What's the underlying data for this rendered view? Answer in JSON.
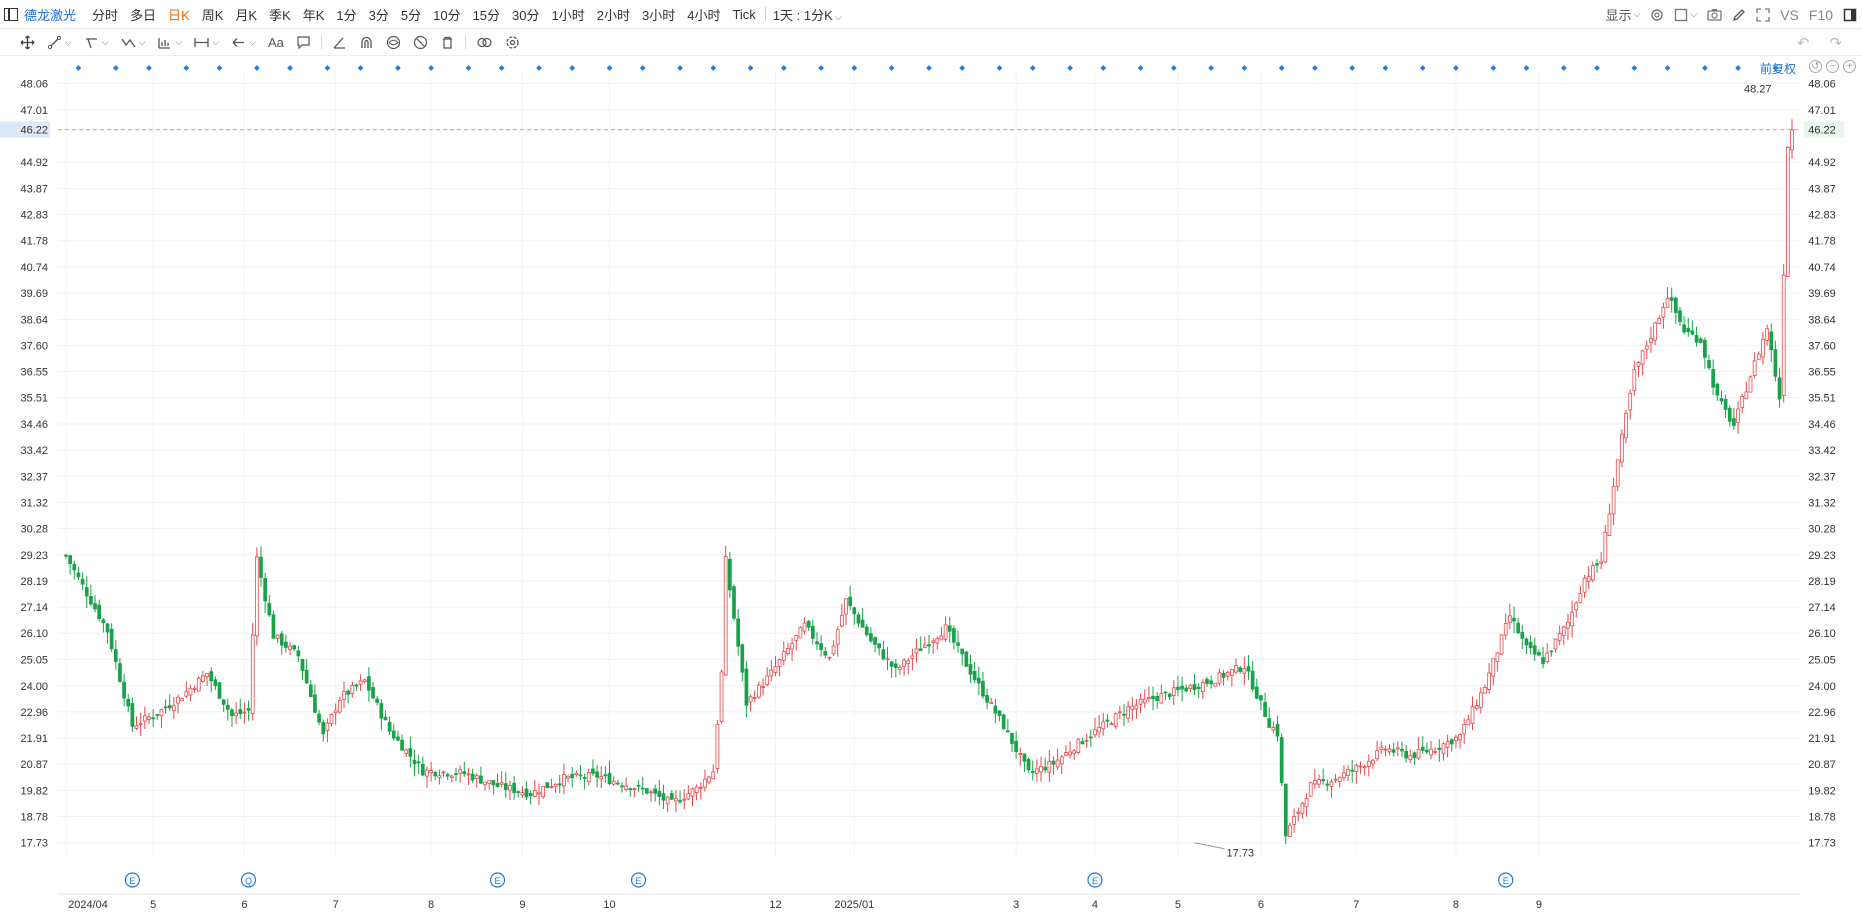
{
  "topbar": {
    "stock_name": "德龙激光",
    "periods": [
      "分时",
      "多日",
      "日K",
      "周K",
      "月K",
      "季K",
      "年K",
      "1分",
      "3分",
      "5分",
      "10分",
      "15分",
      "30分",
      "1小时",
      "2小时",
      "3小时",
      "4小时",
      "Tick"
    ],
    "active_period": "日K",
    "interval_label": "1天 : 1分K",
    "display_label": "显示",
    "vs_label": "VS",
    "f10_label": "F10"
  },
  "chart_header": {
    "adjust_label": "前复权"
  },
  "chart_data": {
    "type": "candlestick",
    "ylim": [
      17.2,
      48.6
    ],
    "y_ticks": [
      "48.06",
      "47.01",
      "46.22",
      "44.92",
      "43.87",
      "42.83",
      "41.78",
      "40.74",
      "39.69",
      "38.64",
      "37.60",
      "36.55",
      "35.51",
      "34.46",
      "33.42",
      "32.37",
      "31.32",
      "30.28",
      "29.23",
      "28.19",
      "27.14",
      "26.10",
      "25.05",
      "24.00",
      "22.96",
      "21.91",
      "20.87",
      "19.82",
      "18.78",
      "17.73"
    ],
    "x_labels": [
      "2024/04",
      "5",
      "6",
      "7",
      "8",
      "9",
      "10",
      "12",
      "2025/01",
      "3",
      "4",
      "5",
      "6",
      "7",
      "8",
      "9"
    ],
    "current_price": "46.22",
    "max_label": "48.27",
    "min_label": "17.73",
    "up_color": "#e8474a",
    "down_color": "#18a34a",
    "anchors": [
      [
        0,
        29.2
      ],
      [
        4,
        28.0
      ],
      [
        10,
        26.2
      ],
      [
        16,
        22.4
      ],
      [
        22,
        22.9
      ],
      [
        28,
        23.6
      ],
      [
        34,
        24.5
      ],
      [
        40,
        22.8
      ],
      [
        44,
        23.0
      ],
      [
        46,
        29.1
      ],
      [
        50,
        26.0
      ],
      [
        56,
        25.2
      ],
      [
        62,
        22.0
      ],
      [
        66,
        23.5
      ],
      [
        72,
        24.2
      ],
      [
        78,
        22.2
      ],
      [
        86,
        20.6
      ],
      [
        96,
        20.5
      ],
      [
        104,
        20.0
      ],
      [
        112,
        19.7
      ],
      [
        120,
        20.3
      ],
      [
        128,
        20.4
      ],
      [
        134,
        20.1
      ],
      [
        140,
        19.8
      ],
      [
        146,
        19.3
      ],
      [
        152,
        19.9
      ],
      [
        156,
        20.6
      ],
      [
        158,
        24.5
      ],
      [
        159,
        29.0
      ],
      [
        164,
        23.3
      ],
      [
        170,
        24.5
      ],
      [
        178,
        26.4
      ],
      [
        184,
        25.1
      ],
      [
        188,
        27.4
      ],
      [
        194,
        25.8
      ],
      [
        200,
        24.6
      ],
      [
        206,
        25.5
      ],
      [
        212,
        26.3
      ],
      [
        220,
        24.0
      ],
      [
        226,
        22.4
      ],
      [
        232,
        20.5
      ],
      [
        238,
        20.9
      ],
      [
        244,
        21.7
      ],
      [
        250,
        22.4
      ],
      [
        256,
        23.1
      ],
      [
        262,
        23.5
      ],
      [
        268,
        23.8
      ],
      [
        276,
        24.2
      ],
      [
        284,
        24.8
      ],
      [
        290,
        22.5
      ],
      [
        292,
        22.1
      ],
      [
        294,
        18.0
      ],
      [
        300,
        20.0
      ],
      [
        306,
        20.3
      ],
      [
        312,
        20.8
      ],
      [
        318,
        21.5
      ],
      [
        324,
        21.2
      ],
      [
        330,
        21.5
      ],
      [
        336,
        22.0
      ],
      [
        342,
        24.0
      ],
      [
        348,
        26.8
      ],
      [
        352,
        25.5
      ],
      [
        356,
        25.0
      ],
      [
        362,
        26.5
      ],
      [
        366,
        28.3
      ],
      [
        370,
        29.0
      ],
      [
        374,
        33.0
      ],
      [
        378,
        36.5
      ],
      [
        382,
        38.0
      ],
      [
        386,
        39.6
      ],
      [
        390,
        38.2
      ],
      [
        394,
        37.8
      ],
      [
        398,
        35.5
      ],
      [
        402,
        34.4
      ],
      [
        406,
        36.4
      ],
      [
        410,
        38.3
      ],
      [
        413,
        35.5
      ],
      [
        415,
        45.6
      ],
      [
        416,
        46.22
      ]
    ],
    "markers_top_count": 49,
    "event_markers": [
      {
        "label": "E"
      },
      {
        "label": "Q"
      },
      {
        "label": "E"
      },
      {
        "label": "E"
      },
      {
        "label": "E"
      },
      {
        "label": "E"
      }
    ]
  }
}
